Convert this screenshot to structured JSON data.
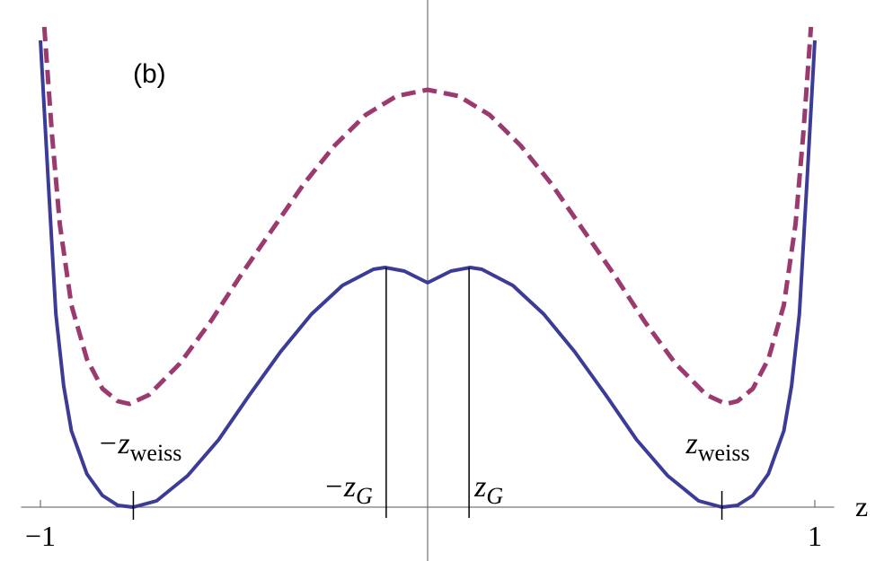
{
  "chart_data": {
    "type": "line",
    "title": "(b)",
    "x_label": "z",
    "xlim": [
      -1.05,
      1.05
    ],
    "ylim": [
      0,
      5.5
    ],
    "xticks": [
      {
        "value": -1,
        "label": "−1"
      },
      1
    ],
    "series": [
      {
        "style": "solid",
        "color": "#3c3c98",
        "x": [
          -1.0,
          -0.98,
          -0.96,
          -0.94,
          -0.92,
          -0.88,
          -0.84,
          -0.8,
          -0.76,
          -0.7,
          -0.62,
          -0.54,
          -0.46,
          -0.38,
          -0.3,
          -0.22,
          -0.14,
          -0.11,
          -0.06,
          0,
          0.06,
          0.11,
          0.14,
          0.22,
          0.3,
          0.38,
          0.46,
          0.54,
          0.62,
          0.7,
          0.76,
          0.8,
          0.84,
          0.88,
          0.92,
          0.94,
          0.96,
          0.98,
          1.0
        ],
        "values": [
          5.2,
          3.65,
          2.15,
          1.35,
          0.85,
          0.37,
          0.13,
          0.02,
          0,
          0.07,
          0.35,
          0.75,
          1.25,
          1.73,
          2.15,
          2.47,
          2.65,
          2.67,
          2.63,
          2.5,
          2.63,
          2.67,
          2.65,
          2.47,
          2.15,
          1.73,
          1.25,
          0.75,
          0.35,
          0.07,
          0,
          0.02,
          0.13,
          0.37,
          0.85,
          1.35,
          2.15,
          3.65,
          5.2
        ]
      },
      {
        "style": "dashed",
        "color": "#9b3a6e",
        "x": [
          -0.99,
          -0.97,
          -0.95,
          -0.92,
          -0.88,
          -0.84,
          -0.8,
          -0.77,
          -0.72,
          -0.64,
          -0.56,
          -0.48,
          -0.4,
          -0.32,
          -0.24,
          -0.16,
          -0.08,
          0,
          0.08,
          0.16,
          0.24,
          0.32,
          0.4,
          0.48,
          0.56,
          0.64,
          0.72,
          0.77,
          0.8,
          0.84,
          0.88,
          0.92,
          0.95,
          0.97,
          0.99
        ],
        "values": [
          5.35,
          4.15,
          3.15,
          2.25,
          1.65,
          1.32,
          1.18,
          1.15,
          1.25,
          1.6,
          2.07,
          2.6,
          3.1,
          3.6,
          4.03,
          4.37,
          4.58,
          4.65,
          4.58,
          4.37,
          4.03,
          3.6,
          3.1,
          2.6,
          2.07,
          1.6,
          1.25,
          1.15,
          1.18,
          1.32,
          1.65,
          2.25,
          3.15,
          4.15,
          5.35
        ]
      }
    ],
    "annotations": [
      {
        "text": "−z",
        "sub": "weiss",
        "x": -0.76
      },
      {
        "text": "−z",
        "sub": "G",
        "x": -0.107,
        "y": 2.67
      },
      {
        "text": "z",
        "sub": "G",
        "x": 0.107,
        "y": 2.67
      },
      {
        "text": "z",
        "sub": "weiss",
        "x": 0.76
      }
    ]
  }
}
